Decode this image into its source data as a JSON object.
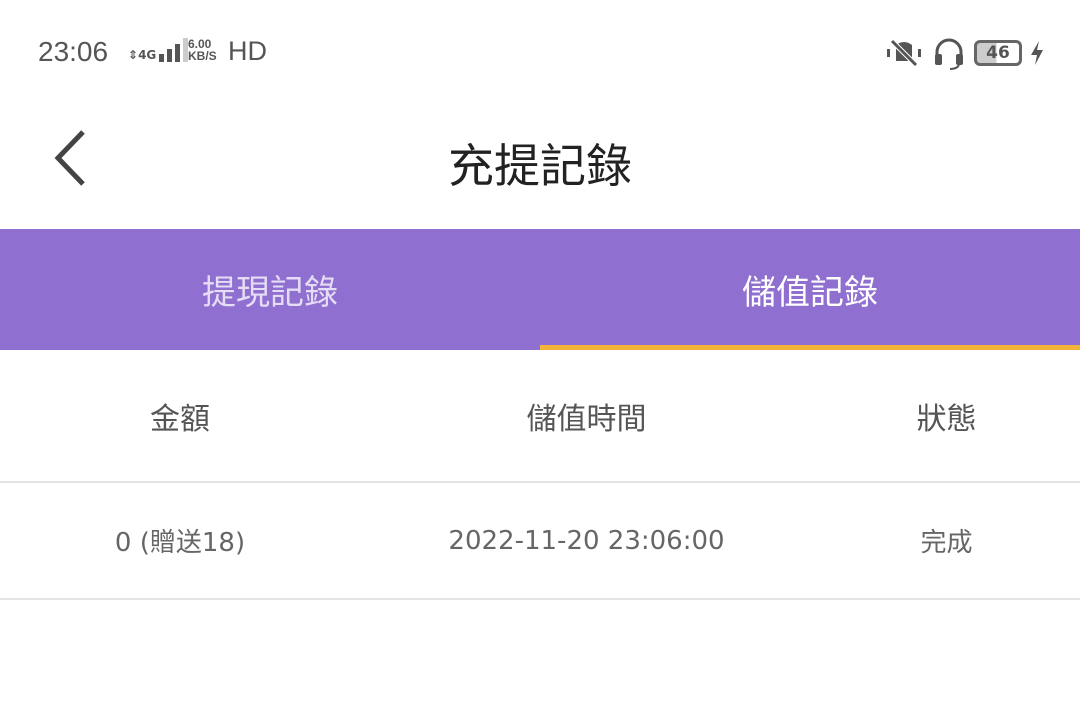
{
  "status_bar": {
    "time": "23:06",
    "network": "4G",
    "speed_value": "6.00",
    "speed_unit": "KB/S",
    "hd": "HD",
    "battery": "46",
    "icons": [
      "signal-icon",
      "vibrate-off-icon",
      "headphones-icon",
      "battery-icon",
      "charging-icon"
    ]
  },
  "header": {
    "title": "充提記錄",
    "back_icon": "chevron-left-icon"
  },
  "tabs": [
    {
      "label": "提現記錄",
      "active": false
    },
    {
      "label": "儲值記錄",
      "active": true
    }
  ],
  "table": {
    "columns": [
      "金額",
      "儲值時間",
      "狀態"
    ],
    "rows": [
      [
        "0 (贈送18)",
        "2022-11-20 23:06:00",
        "完成"
      ]
    ]
  },
  "colors": {
    "tab_bar": "#8f6fcf",
    "indicator": "#f2b53a"
  }
}
